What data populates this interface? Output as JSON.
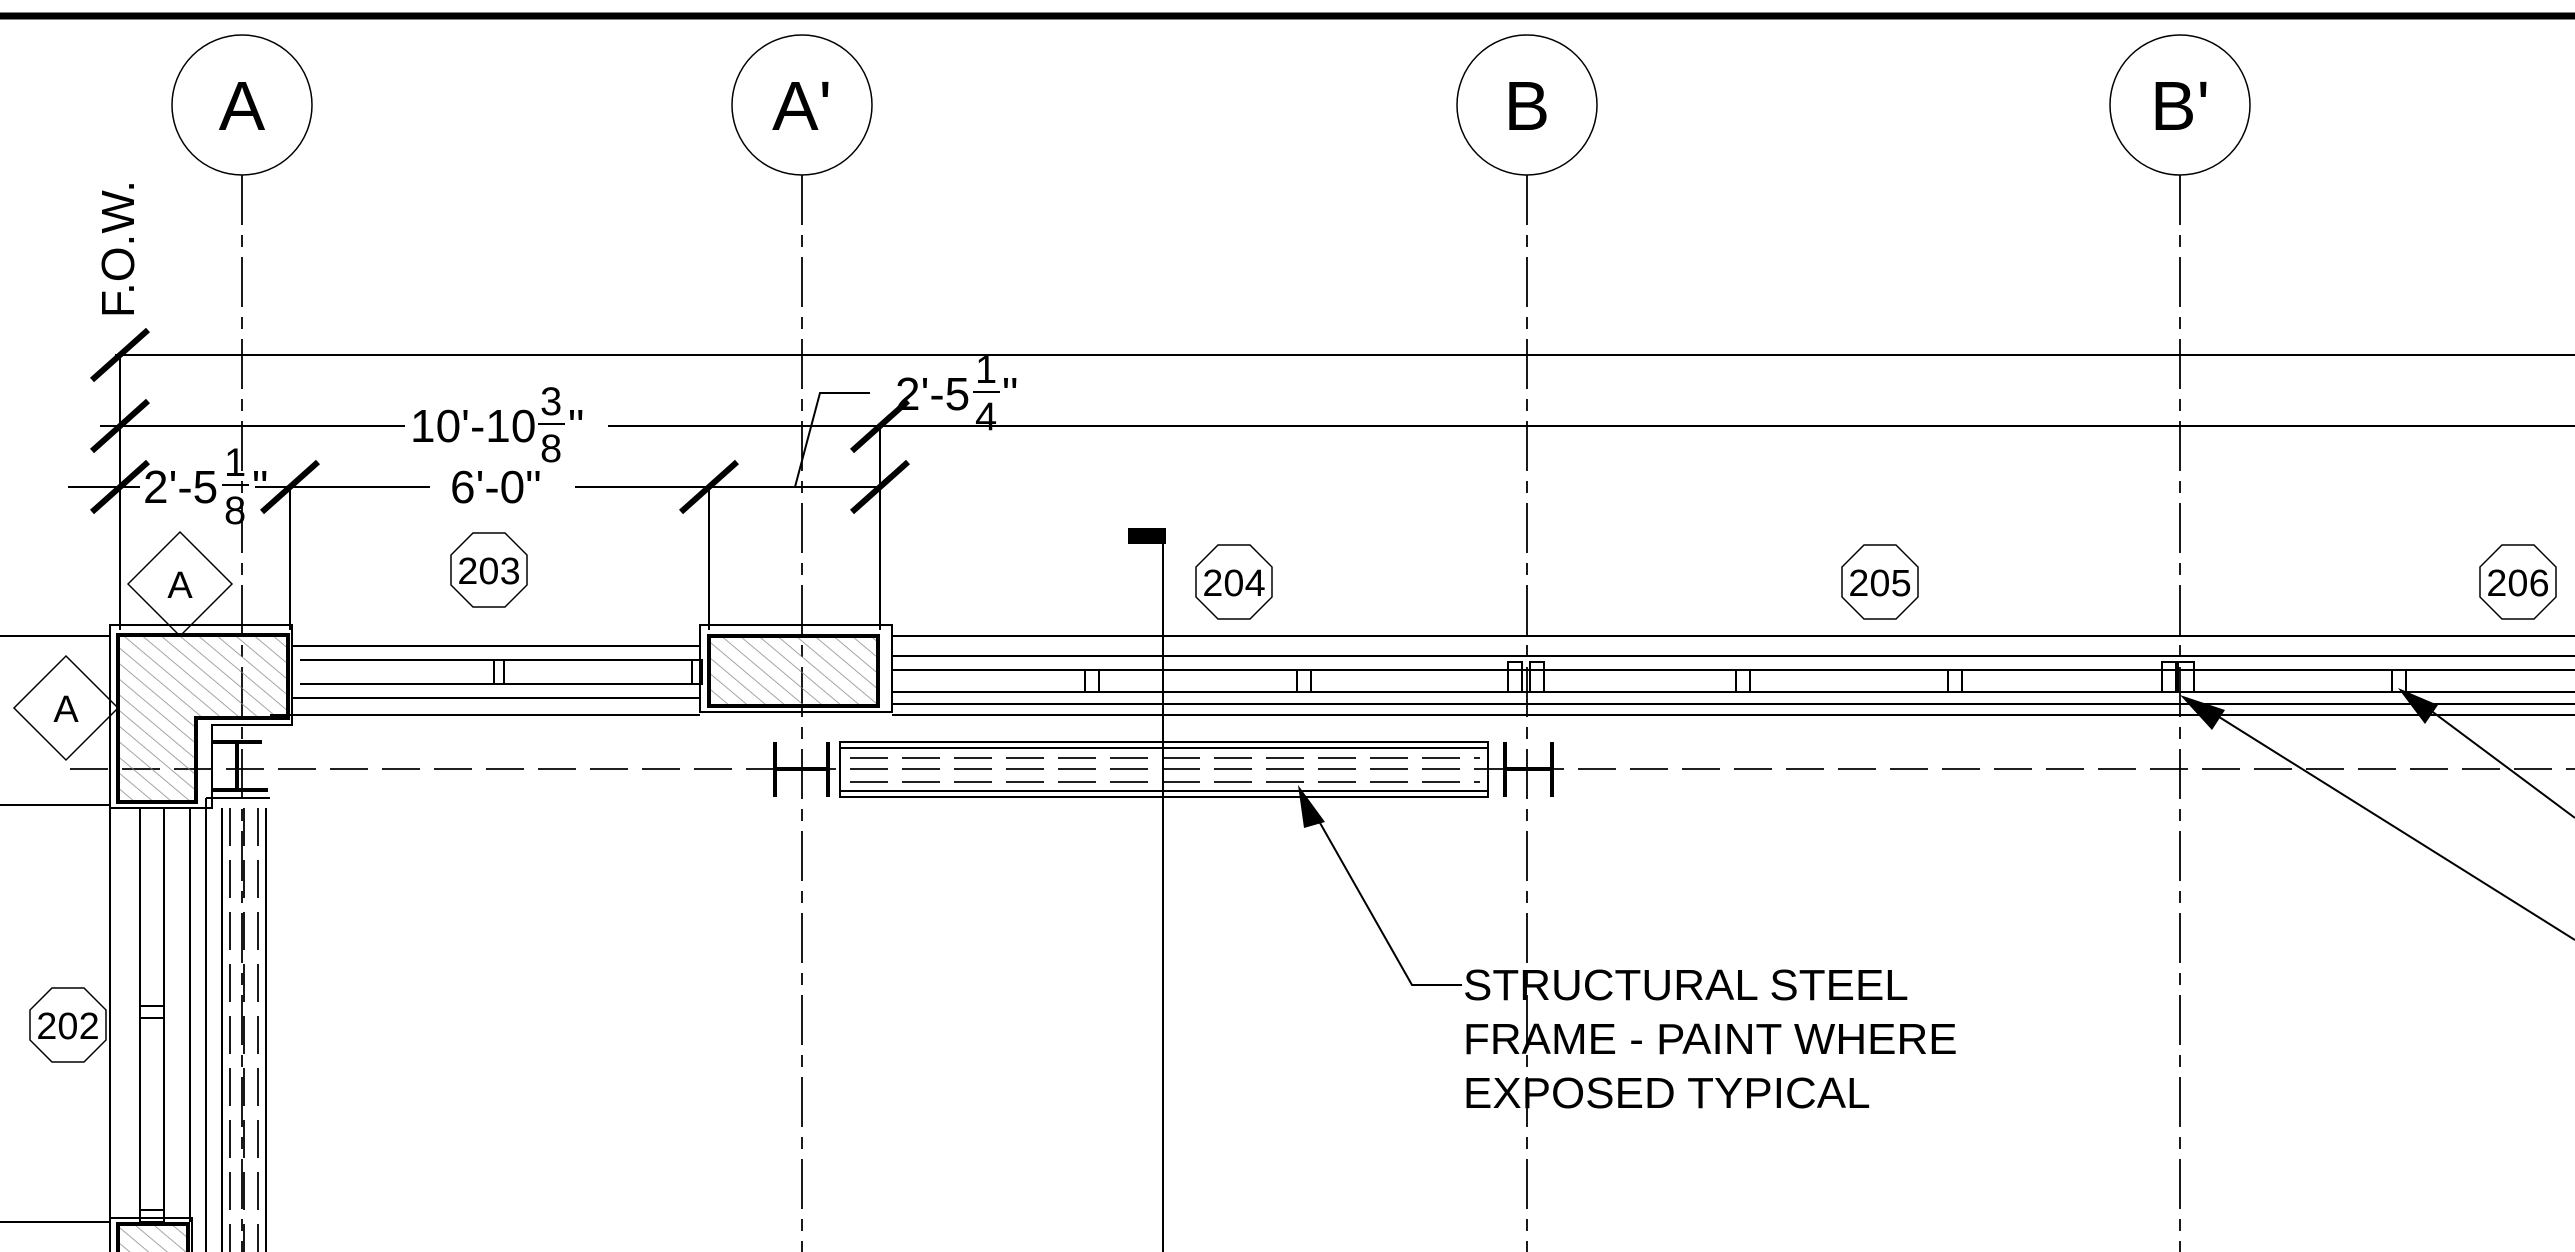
{
  "grid_lines": [
    {
      "id": "A",
      "label": "A"
    },
    {
      "id": "A-prime",
      "label": "A'"
    },
    {
      "id": "B",
      "label": "B"
    },
    {
      "id": "B-prime",
      "label": "B'"
    }
  ],
  "fow_label": "F.O.W.",
  "dimensions": {
    "overall": {
      "whole": "10'-10",
      "num": "3",
      "den": "8",
      "unit": "\""
    },
    "left": {
      "whole": "2'-5",
      "num": "1",
      "den": "8",
      "unit": "\""
    },
    "middle": "6'-0\"",
    "right": {
      "whole": "2'-5",
      "num": "1",
      "den": "4",
      "unit": "\""
    }
  },
  "window_tags": [
    "203",
    "204",
    "205",
    "206",
    "202"
  ],
  "detail_tags": [
    "A",
    "A"
  ],
  "note": {
    "line1": "STRUCTURAL STEEL",
    "line2": "FRAME - PAINT WHERE",
    "line3": "EXPOSED TYPICAL"
  }
}
